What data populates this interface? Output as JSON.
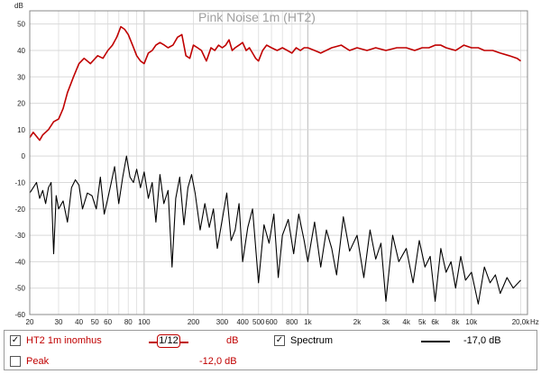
{
  "chart_data": {
    "type": "line",
    "title": "Pink Noise 1m (HT2)",
    "ylabel": "dB",
    "xlabel": "",
    "xscale": "log",
    "xlim": [
      20,
      22000
    ],
    "ylim": [
      -60,
      55
    ],
    "grid": true,
    "x_tick_labels": [
      {
        "f": 20,
        "label": "20"
      },
      {
        "f": 30,
        "label": "30"
      },
      {
        "f": 40,
        "label": "40"
      },
      {
        "f": 50,
        "label": "50"
      },
      {
        "f": 60,
        "label": "60"
      },
      {
        "f": 80,
        "label": "80"
      },
      {
        "f": 100,
        "label": "100"
      },
      {
        "f": 200,
        "label": "200"
      },
      {
        "f": 300,
        "label": "300"
      },
      {
        "f": 400,
        "label": "400"
      },
      {
        "f": 500,
        "label": "500"
      },
      {
        "f": 600,
        "label": "600"
      },
      {
        "f": 800,
        "label": "800"
      },
      {
        "f": 1000,
        "label": "1k"
      },
      {
        "f": 2000,
        "label": "2k"
      },
      {
        "f": 3000,
        "label": "3k"
      },
      {
        "f": 4000,
        "label": "4k"
      },
      {
        "f": 5000,
        "label": "5k"
      },
      {
        "f": 6000,
        "label": "6k"
      },
      {
        "f": 8000,
        "label": "8k"
      },
      {
        "f": 10000,
        "label": "10k"
      },
      {
        "f": 20000,
        "label": "20,0k"
      }
    ],
    "x_unit": "Hz",
    "y_ticks": [
      50,
      40,
      30,
      20,
      10,
      0,
      -10,
      -20,
      -30,
      -40,
      -50,
      -60
    ],
    "y_tick_labels": [
      "50",
      "40",
      "30",
      "20",
      "10",
      "0",
      "-10",
      "-20",
      "-30",
      "-40",
      "-50",
      "-60"
    ],
    "series": [
      {
        "name": "HT2 1m inomhus",
        "color": "#c00000",
        "x": [
          20,
          21,
          23,
          24,
          26,
          28,
          30,
          32,
          34,
          37,
          40,
          43,
          47,
          52,
          56,
          60,
          64,
          68,
          72,
          76,
          80,
          85,
          90,
          95,
          100,
          106,
          112,
          118,
          125,
          133,
          140,
          150,
          160,
          170,
          180,
          190,
          200,
          212,
          224,
          240,
          256,
          270,
          285,
          300,
          315,
          330,
          345,
          360,
          380,
          400,
          420,
          440,
          460,
          480,
          500,
          530,
          560,
          600,
          650,
          700,
          750,
          800,
          850,
          900,
          950,
          1000,
          1100,
          1200,
          1400,
          1600,
          1800,
          2000,
          2300,
          2600,
          3000,
          3500,
          4000,
          4500,
          5000,
          5500,
          6000,
          6500,
          7000,
          8000,
          9000,
          10000,
          11000,
          12000,
          13500,
          15000,
          17000,
          19000,
          20000
        ],
        "values": [
          7,
          9,
          6,
          8,
          10,
          13,
          14,
          18,
          24,
          30,
          35,
          37,
          35,
          38,
          37,
          40,
          42,
          45,
          49,
          48,
          46,
          42,
          38,
          36,
          35,
          39,
          40,
          42,
          43,
          42,
          41,
          42,
          45,
          46,
          38,
          37,
          42,
          41,
          40,
          36,
          41,
          40,
          42,
          41,
          42,
          44,
          40,
          41,
          42,
          43,
          40,
          41,
          39,
          37,
          36,
          40,
          42,
          41,
          40,
          41,
          40,
          39,
          41,
          40,
          41,
          41,
          40,
          39,
          41,
          42,
          40,
          41,
          40,
          41,
          40,
          41,
          41,
          40,
          41,
          41,
          42,
          42,
          41,
          40,
          42,
          41,
          41,
          40,
          40,
          39,
          38,
          37,
          36
        ]
      },
      {
        "name": "Spectrum",
        "color": "#000000",
        "x": [
          20,
          21,
          22,
          23,
          24,
          25,
          26,
          27,
          28,
          29,
          30,
          32,
          34,
          36,
          38,
          40,
          42,
          45,
          48,
          51,
          54,
          57,
          60,
          63,
          66,
          70,
          74,
          78,
          82,
          86,
          90,
          95,
          100,
          106,
          112,
          118,
          125,
          132,
          140,
          148,
          156,
          165,
          175,
          185,
          195,
          205,
          220,
          235,
          250,
          265,
          280,
          300,
          320,
          340,
          360,
          380,
          400,
          430,
          460,
          500,
          540,
          580,
          620,
          660,
          700,
          760,
          820,
          880,
          950,
          1000,
          1100,
          1200,
          1300,
          1400,
          1500,
          1650,
          1800,
          2000,
          2200,
          2400,
          2600,
          2800,
          3000,
          3300,
          3600,
          4000,
          4400,
          4800,
          5200,
          5600,
          6000,
          6500,
          7000,
          7500,
          8000,
          8600,
          9200,
          10000,
          11000,
          12000,
          13000,
          14000,
          15000,
          16500,
          18000,
          20000
        ],
        "values": [
          -14,
          -12,
          -10,
          -16,
          -13,
          -18,
          -12,
          -10,
          -37,
          -15,
          -20,
          -17,
          -25,
          -12,
          -9,
          -11,
          -20,
          -14,
          -15,
          -20,
          -8,
          -22,
          -16,
          -10,
          -4,
          -18,
          -8,
          0,
          -8,
          -10,
          -5,
          -12,
          -6,
          -16,
          -10,
          -25,
          -7,
          -18,
          -13,
          -42,
          -16,
          -8,
          -26,
          -12,
          -7,
          -14,
          -28,
          -18,
          -27,
          -20,
          -35,
          -24,
          -14,
          -32,
          -28,
          -18,
          -40,
          -27,
          -20,
          -48,
          -26,
          -33,
          -22,
          -46,
          -30,
          -24,
          -37,
          -22,
          -32,
          -40,
          -25,
          -42,
          -28,
          -35,
          -45,
          -23,
          -36,
          -30,
          -46,
          -28,
          -39,
          -33,
          -55,
          -30,
          -40,
          -35,
          -48,
          -32,
          -42,
          -38,
          -55,
          -35,
          -44,
          -40,
          -50,
          -38,
          -47,
          -44,
          -56,
          -42,
          -48,
          -45,
          -52,
          -46,
          -50,
          -47
        ]
      }
    ]
  },
  "legend": {
    "row1": {
      "checked": true,
      "name": "HT2 1m inomhus",
      "smoothing": "1/12",
      "unit": "dB",
      "spectrum_checked": true,
      "spectrum_label": "Spectrum",
      "spectrum_value": "-17,0 dB"
    },
    "row2": {
      "checked": false,
      "name": "Peak",
      "value": "-12,0 dB"
    }
  }
}
